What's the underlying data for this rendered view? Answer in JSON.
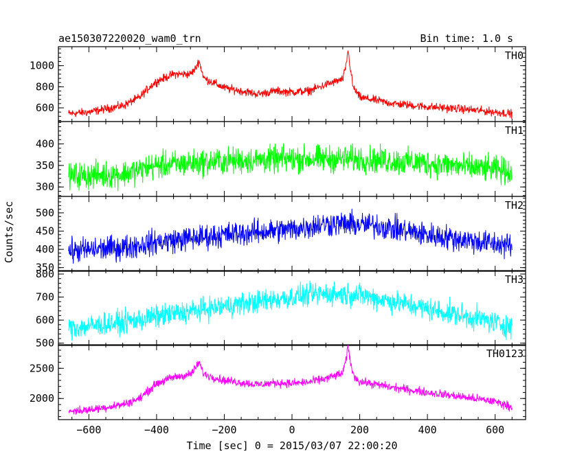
{
  "header": {
    "title": "ae150307220020_wam0_trn",
    "bin_time": "Bin time: 1.0 s"
  },
  "axes": {
    "xlabel": "Time [sec] 0 = 2015/03/07 22:00:20",
    "ylabel": "Counts/sec"
  },
  "chart_data": {
    "type": "line",
    "title": "ae150307220020_wam0_trn",
    "subtitle": "Bin time: 1.0 s",
    "xlabel": "Time [sec] 0 = 2015/03/07 22:00:20",
    "ylabel": "Counts/sec",
    "xlim": [
      -690,
      690
    ],
    "x_range": [
      -660,
      650
    ],
    "bin_time": 1.0,
    "x_ticks": [
      -600,
      -400,
      -200,
      0,
      200,
      400,
      600
    ],
    "x_tick_labels": [
      "−600",
      "−400",
      "−200",
      "0",
      "200",
      "400",
      "600"
    ],
    "grid": false,
    "panels": [
      {
        "name": "TH0",
        "color": "#ff0000",
        "ylim": [
          470,
          1180
        ],
        "y_ticks": [
          600,
          800,
          1000
        ],
        "y_tick_labels": [
          "600",
          "800",
          "1000"
        ],
        "x": [
          -660,
          -600,
          -500,
          -450,
          -420,
          -400,
          -350,
          -300,
          -285,
          -275,
          -260,
          -200,
          -100,
          -50,
          0,
          50,
          100,
          150,
          160,
          165,
          180,
          200,
          300,
          400,
          500,
          600,
          650
        ],
        "y": [
          545,
          560,
          620,
          700,
          800,
          850,
          920,
          920,
          970,
          1050,
          880,
          790,
          730,
          760,
          750,
          760,
          820,
          870,
          1000,
          1150,
          800,
          700,
          640,
          610,
          590,
          560,
          545
        ],
        "noise": 28
      },
      {
        "name": "TH1",
        "color": "#00ff00",
        "ylim": [
          278,
          452
        ],
        "y_ticks": [
          300,
          350,
          400
        ],
        "y_tick_labels": [
          "300",
          "350",
          "400"
        ],
        "x": [
          -660,
          -500,
          -400,
          -200,
          0,
          200,
          400,
          600,
          650
        ],
        "y": [
          325,
          330,
          350,
          360,
          365,
          365,
          355,
          340,
          335
        ],
        "noise": 22
      },
      {
        "name": "TH2",
        "color": "#0000ff",
        "ylim": [
          340,
          545
        ],
        "y_ticks": [
          350,
          400,
          450,
          500
        ],
        "y_tick_labels": [
          "350",
          "400",
          "450",
          "500"
        ],
        "x": [
          -660,
          -500,
          -400,
          -200,
          0,
          100,
          150,
          250,
          400,
          600,
          650
        ],
        "y": [
          395,
          405,
          420,
          440,
          455,
          470,
          470,
          465,
          440,
          415,
          410
        ],
        "noise": 24
      },
      {
        "name": "TH3",
        "color": "#00ffff",
        "ylim": [
          490,
          815
        ],
        "y_ticks": [
          500,
          600,
          700,
          800
        ],
        "y_tick_labels": [
          "500",
          "600",
          "700",
          "800"
        ],
        "x": [
          -660,
          -500,
          -400,
          -200,
          0,
          100,
          200,
          300,
          400,
          500,
          600,
          650
        ],
        "y": [
          565,
          590,
          615,
          660,
          700,
          715,
          710,
          680,
          650,
          620,
          590,
          570
        ],
        "noise": 35
      },
      {
        "name": "TH0123",
        "color": "#ff00ff",
        "ylim": [
          1650,
          2890
        ],
        "y_ticks": [
          2000,
          2500
        ],
        "y_tick_labels": [
          "2000",
          "2500"
        ],
        "x": [
          -660,
          -600,
          -500,
          -450,
          -420,
          -400,
          -350,
          -300,
          -285,
          -275,
          -260,
          -200,
          -100,
          -50,
          0,
          50,
          100,
          150,
          160,
          165,
          180,
          200,
          300,
          400,
          500,
          600,
          650
        ],
        "y": [
          1790,
          1810,
          1900,
          2000,
          2150,
          2250,
          2350,
          2400,
          2500,
          2600,
          2400,
          2300,
          2230,
          2260,
          2250,
          2270,
          2330,
          2420,
          2650,
          2850,
          2400,
          2280,
          2180,
          2100,
          2030,
          1950,
          1860
        ],
        "noise": 50
      }
    ]
  }
}
